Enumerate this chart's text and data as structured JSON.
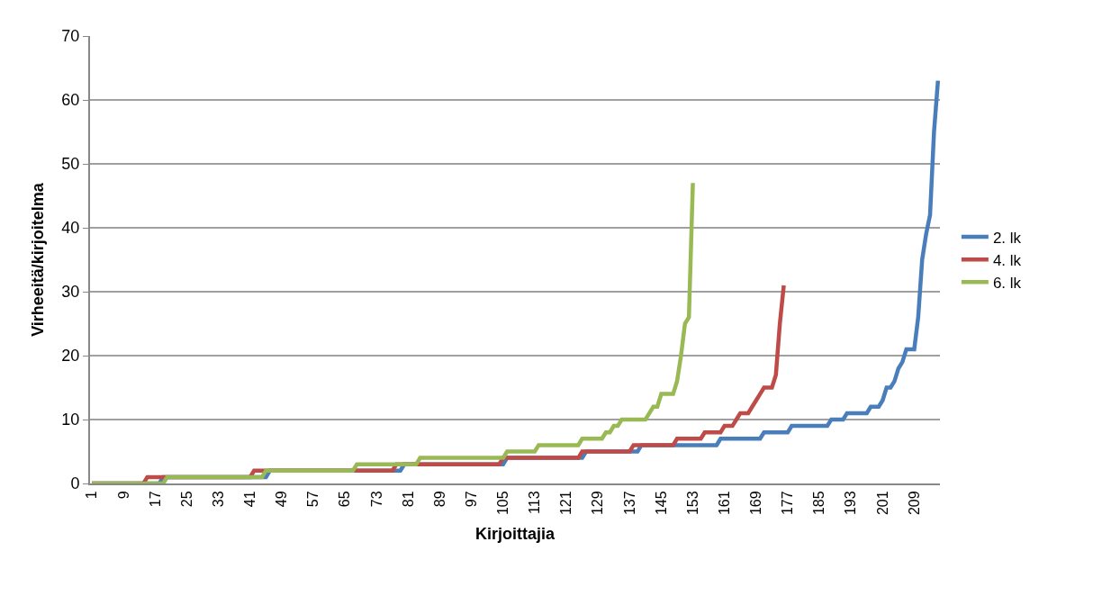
{
  "chart_data": {
    "type": "line",
    "xlabel": "Kirjoittajia",
    "ylabel": "Virheeitä/kirjoitelma",
    "xlim": [
      0.5,
      215.5
    ],
    "xticks": [
      1,
      9,
      17,
      25,
      33,
      41,
      49,
      57,
      65,
      73,
      81,
      89,
      97,
      105,
      113,
      121,
      129,
      137,
      145,
      153,
      161,
      169,
      177,
      185,
      193,
      201,
      209
    ],
    "ylim": [
      0,
      70
    ],
    "yticks": [
      0,
      10,
      20,
      30,
      40,
      50,
      60,
      70
    ],
    "grid": "y",
    "legend": "right",
    "marker": "none",
    "line_style": "solid",
    "series": [
      {
        "name": "2. lk",
        "color": "#4a7ebb",
        "x": [
          1,
          18,
          19,
          45,
          46,
          79,
          80,
          105,
          106,
          125,
          126,
          139,
          140,
          159,
          160,
          170,
          171,
          177,
          178,
          187,
          188,
          191,
          192,
          197,
          198,
          200,
          201,
          202,
          203,
          204,
          205,
          206,
          207,
          209,
          210,
          211,
          212,
          213,
          214,
          215
        ],
        "values": [
          0,
          0,
          1,
          1,
          2,
          2,
          3,
          3,
          4,
          4,
          5,
          5,
          6,
          6,
          7,
          7,
          8,
          8,
          9,
          9,
          10,
          10,
          11,
          11,
          12,
          12,
          13,
          15,
          15,
          16,
          18,
          19,
          21,
          21,
          26,
          35,
          39,
          42,
          55,
          63
        ]
      },
      {
        "name": "4. lk",
        "color": "#be4b48",
        "x": [
          1,
          14,
          15,
          41,
          42,
          77,
          78,
          104,
          105,
          124,
          125,
          137,
          138,
          148,
          149,
          155,
          156,
          160,
          161,
          163,
          164,
          165,
          167,
          168,
          169,
          170,
          171,
          173,
          174,
          175,
          176
        ],
        "values": [
          0,
          0,
          1,
          1,
          2,
          2,
          3,
          3,
          4,
          4,
          5,
          5,
          6,
          6,
          7,
          7,
          8,
          8,
          9,
          9,
          10,
          11,
          11,
          12,
          13,
          14,
          15,
          15,
          17,
          25,
          31
        ]
      },
      {
        "name": "6. lk",
        "color": "#98b954",
        "x": [
          1,
          19,
          20,
          44,
          45,
          67,
          68,
          83,
          84,
          105,
          106,
          113,
          114,
          124,
          125,
          130,
          131,
          132,
          133,
          134,
          135,
          137,
          141,
          142,
          143,
          144,
          145,
          148,
          149,
          150,
          151,
          152,
          153
        ],
        "values": [
          0,
          0,
          1,
          1,
          2,
          2,
          3,
          3,
          4,
          4,
          5,
          5,
          6,
          6,
          7,
          7,
          8,
          8,
          9,
          9,
          10,
          10,
          10,
          11,
          12,
          12,
          14,
          14,
          16,
          20,
          25,
          26,
          47
        ]
      }
    ]
  }
}
